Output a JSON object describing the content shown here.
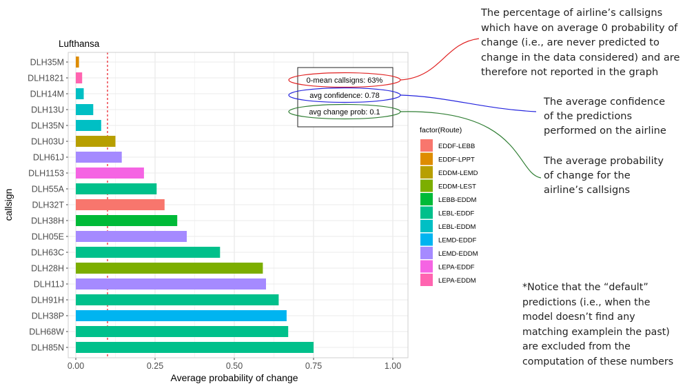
{
  "chart_data": {
    "type": "bar",
    "orientation": "horizontal",
    "title": "Lufthansa",
    "xlabel": "Average probability of change",
    "ylabel": "callsign",
    "xlim": [
      0,
      1
    ],
    "x_ticks": [
      "0.00",
      "0.25",
      "0.50",
      "0.75",
      "1.00"
    ],
    "grid": true,
    "reference_line": {
      "x": 0.1,
      "style": "dashed",
      "color": "#e8000b"
    },
    "categories": [
      "DLH35M",
      "DLH1821",
      "DLH14M",
      "DLH13U",
      "DLH35N",
      "DLH03U",
      "DLH61J",
      "DLH1153",
      "DLH55A",
      "DLH32T",
      "DLH38H",
      "DLH05E",
      "DLH63C",
      "DLH28H",
      "DLH11J",
      "DLH91H",
      "DLH38P",
      "DLH68W",
      "DLH85N"
    ],
    "values": [
      0.01,
      0.02,
      0.025,
      0.055,
      0.08,
      0.125,
      0.145,
      0.215,
      0.255,
      0.28,
      0.32,
      0.35,
      0.455,
      0.59,
      0.6,
      0.64,
      0.665,
      0.67,
      0.75
    ],
    "routes": [
      "EDDF-LPPT",
      "LEPA-EDDM",
      "LEBL-EDDM",
      "LEBL-EDDM",
      "LEBL-EDDM",
      "EDDM-LEMD",
      "LEMD-EDDM",
      "LEPA-EDDF",
      "LEBL-EDDF",
      "EDDF-LEBB",
      "LEBB-EDDM",
      "LEMD-EDDM",
      "LEBL-EDDF",
      "EDDM-LEST",
      "LEMD-EDDM",
      "LEBL-EDDF",
      "LEMD-EDDF",
      "LEBL-EDDF",
      "LEBL-EDDF"
    ],
    "legend": {
      "title": "factor(Route)",
      "placement": "right",
      "entries": [
        {
          "name": "EDDF-LEBB",
          "color": "#F8766D"
        },
        {
          "name": "EDDF-LPPT",
          "color": "#DE8C00"
        },
        {
          "name": "EDDM-LEMD",
          "color": "#B79F00"
        },
        {
          "name": "EDDM-LEST",
          "color": "#7CAE00"
        },
        {
          "name": "LEBB-EDDM",
          "color": "#00BA38"
        },
        {
          "name": "LEBL-EDDF",
          "color": "#00C08B"
        },
        {
          "name": "LEBL-EDDM",
          "color": "#00BFC4"
        },
        {
          "name": "LEMD-EDDF",
          "color": "#00B4F0"
        },
        {
          "name": "LEMD-EDDM",
          "color": "#A58AFF"
        },
        {
          "name": "LEPA-EDDF",
          "color": "#F564E3"
        },
        {
          "name": "LEPA-EDDM",
          "color": "#FF64B0"
        }
      ]
    },
    "stats_box": [
      {
        "text": "0-mean callsigns: 63%",
        "color": "#e02020"
      },
      {
        "text": "avg confidence: 0.78",
        "color": "#2222dd"
      },
      {
        "text": "avg change prob: 0.1",
        "color": "#2e7d32"
      }
    ]
  },
  "annotations": {
    "zero_mean": [
      "The percentage of airline’s callsigns",
      "which have on average 0 probability of",
      "change (i.e., are never predicted to",
      "change in the data considered) and are",
      "therefore not reported in the graph"
    ],
    "confidence": [
      "The average confidence",
      "of the predictions",
      "performed on the airline"
    ],
    "change_prob": [
      "The average probability",
      "of change for the",
      "airline’s callsigns"
    ],
    "default_note": [
      "*Notice that the “default”",
      "predictions (i.e., when the",
      "model doesn’t find any",
      "matching examplein the past)",
      "are excluded from the",
      "computation of these numbers"
    ]
  }
}
